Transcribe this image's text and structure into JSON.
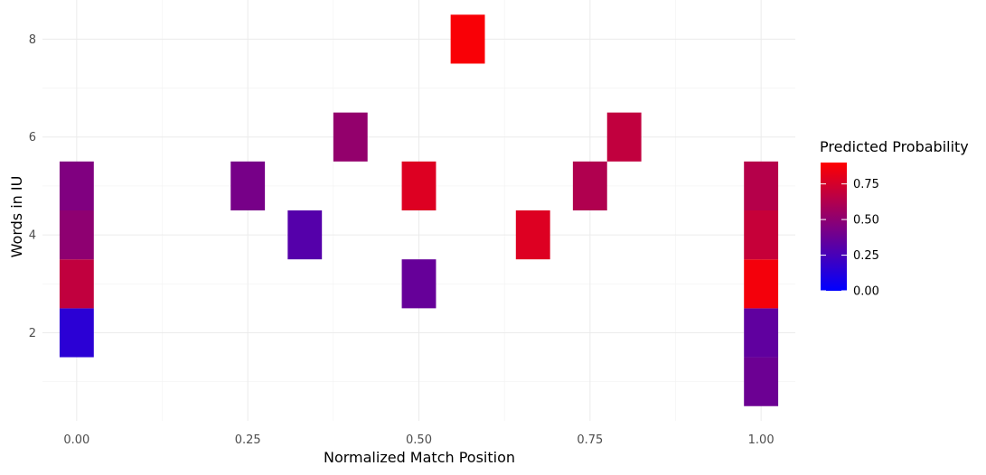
{
  "chart_data": {
    "type": "heatmap",
    "xlabel": "Normalized Match Position",
    "ylabel": "Words in IU",
    "xlim": [
      -0.05,
      1.05
    ],
    "ylim": [
      0.2,
      8.8
    ],
    "x_ticks": [
      0.0,
      0.25,
      0.5,
      0.75,
      1.0
    ],
    "x_tick_labels": [
      "0.00",
      "0.25",
      "0.50",
      "0.75",
      "1.00"
    ],
    "y_ticks": [
      2,
      4,
      6,
      8
    ],
    "y_tick_labels": [
      "2",
      "4",
      "6",
      "8"
    ],
    "tile_width": 0.05,
    "tile_height": 1,
    "grid": true,
    "legend": {
      "title": "Predicted Probability",
      "placement": "right",
      "range": [
        0.0,
        0.9
      ],
      "ticks": [
        0.0,
        0.25,
        0.5,
        0.75
      ],
      "tick_labels": [
        "0.00",
        "0.25",
        "0.50",
        "0.75"
      ],
      "low_color": "#0000ff",
      "high_color": "#ff0000"
    },
    "tiles": [
      {
        "x": 0.0,
        "y": 2,
        "value": 0.15
      },
      {
        "x": 0.0,
        "y": 3,
        "value": 0.68
      },
      {
        "x": 0.0,
        "y": 4,
        "value": 0.5
      },
      {
        "x": 0.0,
        "y": 5,
        "value": 0.45
      },
      {
        "x": 0.25,
        "y": 5,
        "value": 0.42
      },
      {
        "x": 0.3333,
        "y": 4,
        "value": 0.3
      },
      {
        "x": 0.4,
        "y": 6,
        "value": 0.52
      },
      {
        "x": 0.5,
        "y": 3,
        "value": 0.36
      },
      {
        "x": 0.5,
        "y": 5,
        "value": 0.78
      },
      {
        "x": 0.5714,
        "y": 8,
        "value": 0.88
      },
      {
        "x": 0.6667,
        "y": 4,
        "value": 0.78
      },
      {
        "x": 0.75,
        "y": 5,
        "value": 0.62
      },
      {
        "x": 0.8,
        "y": 6,
        "value": 0.68
      },
      {
        "x": 1.0,
        "y": 1,
        "value": 0.38
      },
      {
        "x": 1.0,
        "y": 2,
        "value": 0.34
      },
      {
        "x": 1.0,
        "y": 3,
        "value": 0.86
      },
      {
        "x": 1.0,
        "y": 4,
        "value": 0.7
      },
      {
        "x": 1.0,
        "y": 5,
        "value": 0.64
      }
    ]
  }
}
